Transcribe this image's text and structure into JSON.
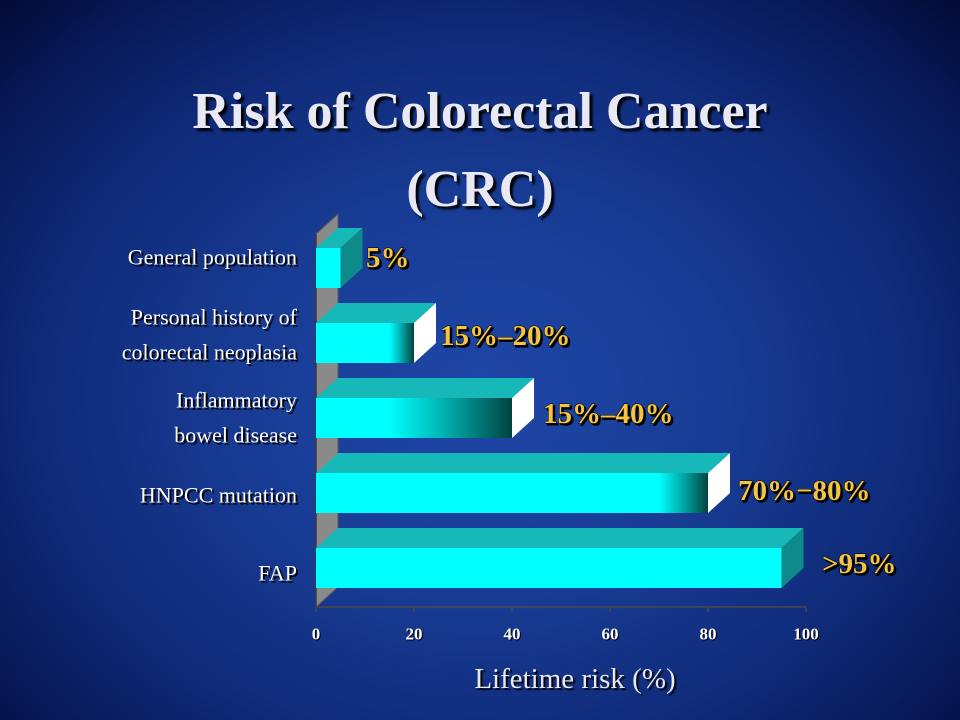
{
  "slide": {
    "title_line1": "Risk of Colorectal Cancer",
    "title_line2": "(CRC)"
  },
  "colors": {
    "background": "#183c95",
    "bar_front": "#00ffff",
    "bar_top": "#17b8b8",
    "bar_side": "#0e8a8a",
    "value_label": "#f5c542",
    "category_label": "#ffffff"
  },
  "chart_data": {
    "type": "bar",
    "orientation": "horizontal",
    "style": "3d",
    "categories": [
      [
        "General population"
      ],
      [
        "Personal history of",
        "colorectal neoplasia"
      ],
      [
        "Inflammatory",
        "bowel disease"
      ],
      [
        "HNPCC mutation"
      ],
      [
        "FAP"
      ]
    ],
    "ranges": [
      {
        "low": 5,
        "high": 5
      },
      {
        "low": 15,
        "high": 20
      },
      {
        "low": 15,
        "high": 40
      },
      {
        "low": 70,
        "high": 80
      },
      {
        "low": 95,
        "high": 95
      }
    ],
    "value_labels": [
      "5%",
      "15%–20%",
      "15%–40%",
      "70%−80%",
      ">95%"
    ],
    "xlabel": "Lifetime risk (%)",
    "xlim": [
      0,
      100
    ],
    "xticks": [
      "0",
      "20",
      "40",
      "60",
      "80",
      "100"
    ]
  }
}
